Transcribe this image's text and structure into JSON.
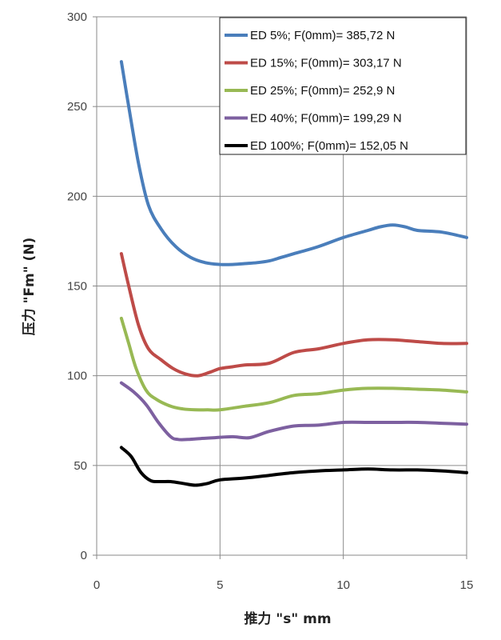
{
  "chart_data": {
    "type": "line",
    "xlabel": "推力 \"s\" mm",
    "ylabel": "压力 \"Fm\" (N)",
    "xlim": [
      0,
      15
    ],
    "ylim": [
      0,
      300
    ],
    "x_ticks": [
      0,
      5,
      10,
      15
    ],
    "y_ticks": [
      0,
      50,
      100,
      150,
      200,
      250,
      300
    ],
    "grid": true,
    "legend_position": "top-right",
    "series": [
      {
        "name": "ED 5%; F(0mm)= 385,72 N",
        "color": "#4a7ebb",
        "x": [
          1,
          1.3,
          1.7,
          2.1,
          2.6,
          3.2,
          3.8,
          4.4,
          5,
          5.5,
          6,
          6.5,
          7,
          7.5,
          8,
          9,
          10,
          11,
          11.5,
          12,
          12.5,
          13,
          14,
          15
        ],
        "y": [
          275,
          250,
          218,
          195,
          182,
          172,
          166,
          163,
          162,
          162,
          162.5,
          163,
          164,
          166,
          168,
          172,
          177,
          181,
          183,
          184,
          183,
          181,
          180,
          177
        ]
      },
      {
        "name": "ED 15%; F(0mm)= 303,17 N",
        "color": "#be4b48",
        "x": [
          1,
          1.3,
          1.7,
          2.1,
          2.6,
          3.1,
          3.6,
          4.1,
          4.6,
          5,
          5.5,
          6,
          7,
          8,
          9,
          10,
          11,
          12,
          13,
          14,
          15
        ],
        "y": [
          168,
          150,
          128,
          115,
          109,
          104,
          101,
          100,
          102,
          104,
          105,
          106,
          107,
          113,
          115,
          118,
          120,
          120,
          119,
          118,
          118
        ]
      },
      {
        "name": "ED 25%; F(0mm)= 252,9 N",
        "color": "#98b954",
        "x": [
          1,
          1.3,
          1.6,
          2,
          2.4,
          3,
          3.5,
          4,
          4.5,
          5,
          6,
          7,
          8,
          9,
          10,
          11,
          12,
          13,
          14,
          15
        ],
        "y": [
          132,
          118,
          104,
          92,
          87,
          83,
          81.5,
          81,
          81,
          81,
          83,
          85,
          89,
          90,
          92,
          93,
          93,
          92.5,
          92,
          91
        ]
      },
      {
        "name": "ED 40%; F(0mm)= 199,29 N",
        "color": "#7d60a0",
        "x": [
          1,
          1.5,
          2,
          2.5,
          3,
          3.3,
          3.7,
          4.2,
          4.8,
          5.5,
          6.2,
          7,
          8,
          9,
          10,
          11,
          12,
          13,
          14,
          15
        ],
        "y": [
          96,
          91,
          84,
          74,
          66,
          64.5,
          64.5,
          65,
          65.5,
          66,
          65.5,
          69,
          72,
          72.5,
          74,
          74,
          74,
          74,
          73.5,
          73
        ]
      },
      {
        "name": "ED 100%; F(0mm)= 152,05 N",
        "color": "#000000",
        "x": [
          1,
          1.4,
          1.8,
          2.2,
          2.6,
          3,
          3.5,
          4,
          4.5,
          5,
          6,
          7,
          8,
          9,
          10,
          11,
          12,
          13,
          14,
          15
        ],
        "y": [
          60,
          55,
          46,
          41.5,
          41,
          41,
          40,
          39,
          40,
          42,
          43,
          44.5,
          46,
          47,
          47.5,
          48,
          47.5,
          47.5,
          47,
          46
        ]
      }
    ]
  }
}
